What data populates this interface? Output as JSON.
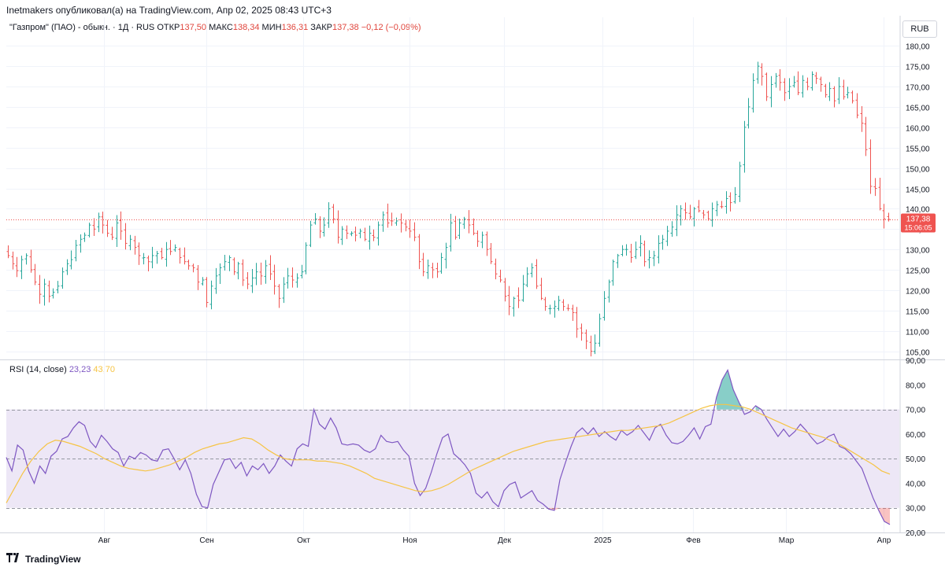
{
  "header": {
    "publish_line": "Inetmakers опубликовал(а) на TradingView.com, Апр 02, 2025 08:43 UTC+3"
  },
  "legend": {
    "symbol": "\"Газпром\" (ПАО) - обыкн. · 1Д · RUS",
    "open_label": "ОТКР",
    "open_value": "137,50",
    "high_label": "МАКС",
    "high_value": "138,34",
    "low_label": "МИН",
    "low_value": "136,31",
    "close_label": "ЗАКР",
    "close_value": "137,38",
    "change_value": "−0,12 (−0,09%)"
  },
  "currency": "RUB",
  "price_axis": {
    "ticks": [
      "180,00",
      "175,00",
      "170,00",
      "165,00",
      "160,00",
      "155,00",
      "150,00",
      "145,00",
      "140,00",
      "135,00",
      "130,00",
      "125,00",
      "120,00",
      "115,00",
      "110,00",
      "105,00"
    ],
    "last_price": "137,38",
    "countdown": "15:06:05"
  },
  "rsi": {
    "label": "RSI (14, close)",
    "value": "23,23",
    "ma_value": "43,70",
    "ticks": [
      "90,00",
      "80,00",
      "70,00",
      "60,00",
      "50,00",
      "40,00",
      "30,00",
      "20,00"
    ]
  },
  "time_axis": [
    "Авг",
    "Сен",
    "Окт",
    "Ноя",
    "Дек",
    "2025",
    "Фев",
    "Мар",
    "Апр"
  ],
  "footer": {
    "brand": "TradingView"
  },
  "colors": {
    "up": "#26a69a",
    "down": "#ef5350",
    "rsi_line": "#7e57c2",
    "rsi_ma": "#f6c445",
    "rsi_band": "#ede7f6",
    "grid": "#f0f3fa",
    "last_price_badge": "#ef5350"
  },
  "chart_data": [
    {
      "type": "ohlc",
      "title": "\"Газпром\" (ПАО) - обыкн. · 1Д · RUS",
      "ylim": [
        103,
        187
      ],
      "series": [
        {
          "values": [
            128.5,
            126.5,
            124.8,
            127.5,
            128.5,
            125.0,
            122.0,
            119.0,
            121.5,
            118.5,
            119.5,
            121.0,
            124.5,
            126.5,
            127.5,
            131.0,
            132.5,
            133.5,
            136.0,
            135.0,
            138.0,
            136.0,
            134.0,
            133.0,
            136.5,
            134.5,
            131.5,
            132.5,
            130.5,
            128.5,
            128.0,
            127.0,
            128.5,
            129.0,
            128.0,
            130.0,
            129.5,
            130.5,
            128.0,
            127.0,
            126.0,
            125.5,
            122.0,
            122.5,
            117.0,
            121.0,
            123.5,
            125.5,
            127.0,
            128.0,
            124.5,
            126.5,
            122.5,
            121.5,
            123.0,
            124.5,
            123.5,
            126.0,
            124.0,
            121.0,
            118.0,
            121.5,
            123.5,
            122.5,
            123.0,
            124.5,
            131.0,
            136.0,
            137.5,
            134.5,
            136.0,
            140.0,
            137.5,
            133.0,
            135.0,
            134.0,
            134.0,
            133.5,
            134.5,
            132.5,
            134.0,
            133.0,
            136.0,
            138.5,
            136.5,
            137.0,
            137.0,
            136.5,
            135.5,
            134.5,
            133.0,
            127.0,
            124.5,
            126.0,
            125.0,
            124.5,
            128.0,
            130.5,
            136.5,
            133.0,
            136.5,
            137.5,
            136.0,
            134.0,
            132.0,
            133.5,
            130.0,
            127.0,
            124.0,
            122.5,
            118.5,
            116.0,
            118.0,
            117.5,
            121.5,
            124.0,
            125.5,
            121.0,
            118.0,
            116.0,
            115.5,
            116.0,
            117.5,
            116.0,
            115.5,
            114.5,
            110.5,
            109.5,
            107.5,
            105.0,
            107.0,
            113.0,
            118.0,
            122.0,
            127.0,
            128.5,
            130.0,
            130.0,
            128.0,
            130.0,
            131.5,
            127.0,
            128.0,
            128.5,
            131.5,
            132.5,
            134.5,
            135.5,
            138.5,
            140.0,
            139.0,
            138.0,
            140.0,
            139.5,
            138.5,
            137.5,
            140.0,
            141.0,
            140.5,
            142.5,
            141.5,
            143.5,
            150.5,
            160.0,
            165.0,
            171.5,
            175.0,
            172.5,
            167.5,
            170.5,
            172.5,
            171.0,
            168.5,
            170.0,
            171.0,
            168.5,
            171.5,
            170.0,
            173.0,
            172.0,
            170.5,
            168.0,
            169.5,
            166.5,
            170.0,
            167.5,
            168.5,
            166.5,
            163.0,
            161.0,
            154.5,
            145.5,
            145.0,
            140.0,
            137.5,
            137.38
          ]
        }
      ]
    },
    {
      "type": "line",
      "title": "RSI (14, close)",
      "ylim": [
        20,
        90
      ],
      "series": [
        {
          "name": "RSI (14, close)",
          "values": [
            50.5,
            45.0,
            55.5,
            53.5,
            45.0,
            40.0,
            47.0,
            44.0,
            51.0,
            53.0,
            58.0,
            59.0,
            62.5,
            65.0,
            63.5,
            57.0,
            54.5,
            59.5,
            57.0,
            54.0,
            52.5,
            47.0,
            51.0,
            50.0,
            52.5,
            51.5,
            49.5,
            49.0,
            53.5,
            54.0,
            50.0,
            45.5,
            49.5,
            44.0,
            35.5,
            30.5,
            30.0,
            39.5,
            44.5,
            49.5,
            50.0,
            46.0,
            48.5,
            43.0,
            47.0,
            45.5,
            48.0,
            44.0,
            47.0,
            51.5,
            49.0,
            47.0,
            54.0,
            56.0,
            55.0,
            70.0,
            64.0,
            62.0,
            66.5,
            62.5,
            56.0,
            55.5,
            56.0,
            55.5,
            53.5,
            52.5,
            54.0,
            59.5,
            57.0,
            56.5,
            57.0,
            53.5,
            51.0,
            40.0,
            35.0,
            38.0,
            44.5,
            52.0,
            58.5,
            60.0,
            52.0,
            50.0,
            47.5,
            44.0,
            36.0,
            34.0,
            36.5,
            32.5,
            30.5,
            37.0,
            39.5,
            40.5,
            34.0,
            35.5,
            37.0,
            33.0,
            31.5,
            29.5,
            29.0,
            41.5,
            48.5,
            55.0,
            60.5,
            62.5,
            60.0,
            62.5,
            59.0,
            61.0,
            59.0,
            57.5,
            61.5,
            59.5,
            61.0,
            63.5,
            60.5,
            57.5,
            62.5,
            64.0,
            59.5,
            56.5,
            56.0,
            57.0,
            59.5,
            62.5,
            58.0,
            63.0,
            64.0,
            75.0,
            82.0,
            86.0,
            78.0,
            73.0,
            68.0,
            69.0,
            71.5,
            70.0,
            66.0,
            62.5,
            59.0,
            62.0,
            59.0,
            61.0,
            64.0,
            61.5,
            58.5,
            56.0,
            57.0,
            59.0,
            60.0,
            55.0,
            54.0,
            52.0,
            49.0,
            46.0,
            40.0,
            34.0,
            29.0,
            24.5,
            23.23
          ]
        },
        {
          "name": "MA",
          "values": [
            32.0,
            38.0,
            44.0,
            49.0,
            53.0,
            56.0,
            57.5,
            57.0,
            56.0,
            55.0,
            53.5,
            52.0,
            50.0,
            48.5,
            47.0,
            46.0,
            45.5,
            45.0,
            45.5,
            46.5,
            47.5,
            49.0,
            50.5,
            52.5,
            54.0,
            55.0,
            56.0,
            56.5,
            57.5,
            58.5,
            58.0,
            56.0,
            53.5,
            51.5,
            50.0,
            49.5,
            49.5,
            49.5,
            49.0,
            49.0,
            48.5,
            48.0,
            47.0,
            45.5,
            44.0,
            42.0,
            41.0,
            40.0,
            39.0,
            38.0,
            37.0,
            36.5,
            37.0,
            38.0,
            39.5,
            41.5,
            43.5,
            45.5,
            47.0,
            48.5,
            50.0,
            51.5,
            53.0,
            54.0,
            55.0,
            56.0,
            57.0,
            57.5,
            58.0,
            58.5,
            59.0,
            59.5,
            60.0,
            60.5,
            61.0,
            61.5,
            61.5,
            62.0,
            62.5,
            63.0,
            63.5,
            64.5,
            66.0,
            67.5,
            69.0,
            70.5,
            71.5,
            72.0,
            72.0,
            71.5,
            71.0,
            70.0,
            68.5,
            67.0,
            65.5,
            64.0,
            62.5,
            61.5,
            60.5,
            59.5,
            58.5,
            57.0,
            55.5,
            53.5,
            51.5,
            49.5,
            47.5,
            45.0,
            43.7
          ]
        }
      ]
    }
  ]
}
